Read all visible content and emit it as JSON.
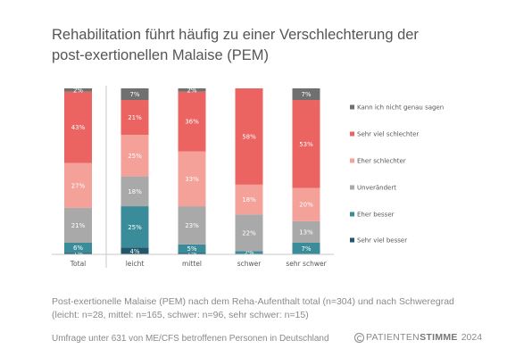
{
  "title": "Rehabilitation führt häufig zu einer Verschlechterung der post-exertionellen Malaise (PEM)",
  "caption": "Post-exertionelle Malaise (PEM) nach dem Reha-Aufenthalt total (n=304) und nach Schweregrad (leicht: n=28, mittel: n=165, schwer: n=96, sehr schwer: n=15)",
  "footer": "Umfrage unter 631 von ME/CFS betroffenen Personen in Deutschland",
  "brand": {
    "part1": "PATIENTEN",
    "part2": "STIMME",
    "year": "2024"
  },
  "colors": {
    "sehr_viel_besser": "#22576b",
    "eher_besser": "#3b8c9a",
    "unveraendert": "#a9a9a9",
    "eher_schlechter": "#f4a19a",
    "sehr_viel_schlechter": "#eb6461",
    "kann_nicht": "#707070"
  },
  "chart_data": {
    "type": "bar",
    "stacked": true,
    "percent_stacked": true,
    "categories": [
      "Total",
      "leicht",
      "mittel",
      "schwer",
      "sehr schwer"
    ],
    "series": [
      {
        "name": "Sehr viel besser",
        "color": "#22576b",
        "values": [
          1,
          4,
          1,
          0,
          0
        ],
        "labels": [
          "1%",
          "4%",
          "1%",
          "",
          ""
        ]
      },
      {
        "name": "Eher besser",
        "color": "#3b8c9a",
        "values": [
          6,
          25,
          5,
          2,
          7
        ],
        "labels": [
          "6%",
          "25%",
          "5%",
          "2%",
          "7%"
        ]
      },
      {
        "name": "Unverändert",
        "color": "#a9a9a9",
        "values": [
          21,
          18,
          23,
          22,
          13
        ],
        "labels": [
          "21%",
          "18%",
          "23%",
          "22%",
          "13%"
        ]
      },
      {
        "name": "Eher schlechter",
        "color": "#f4a19a",
        "values": [
          27,
          25,
          33,
          18,
          20
        ],
        "labels": [
          "27%",
          "25%",
          "33%",
          "18%",
          "20%"
        ]
      },
      {
        "name": "Sehr viel schlechter",
        "color": "#eb6461",
        "values": [
          43,
          21,
          36,
          58,
          53
        ],
        "labels": [
          "43%",
          "21%",
          "36%",
          "58%",
          "53%"
        ]
      },
      {
        "name": "Kann ich nicht genau sagen",
        "color": "#707070",
        "values": [
          2,
          7,
          2,
          0,
          7
        ],
        "labels": [
          "2%",
          "7%",
          "2%",
          "",
          "7%"
        ]
      }
    ],
    "legend": [
      "Kann ich nicht genau sagen",
      "Sehr viel schlechter",
      "Eher schlechter",
      "Unverändert",
      "Eher besser",
      "Sehr viel besser"
    ],
    "legend_colors": [
      "#707070",
      "#eb6461",
      "#f4a19a",
      "#a9a9a9",
      "#3b8c9a",
      "#22576b"
    ],
    "legend_position": "right",
    "grid": false
  }
}
